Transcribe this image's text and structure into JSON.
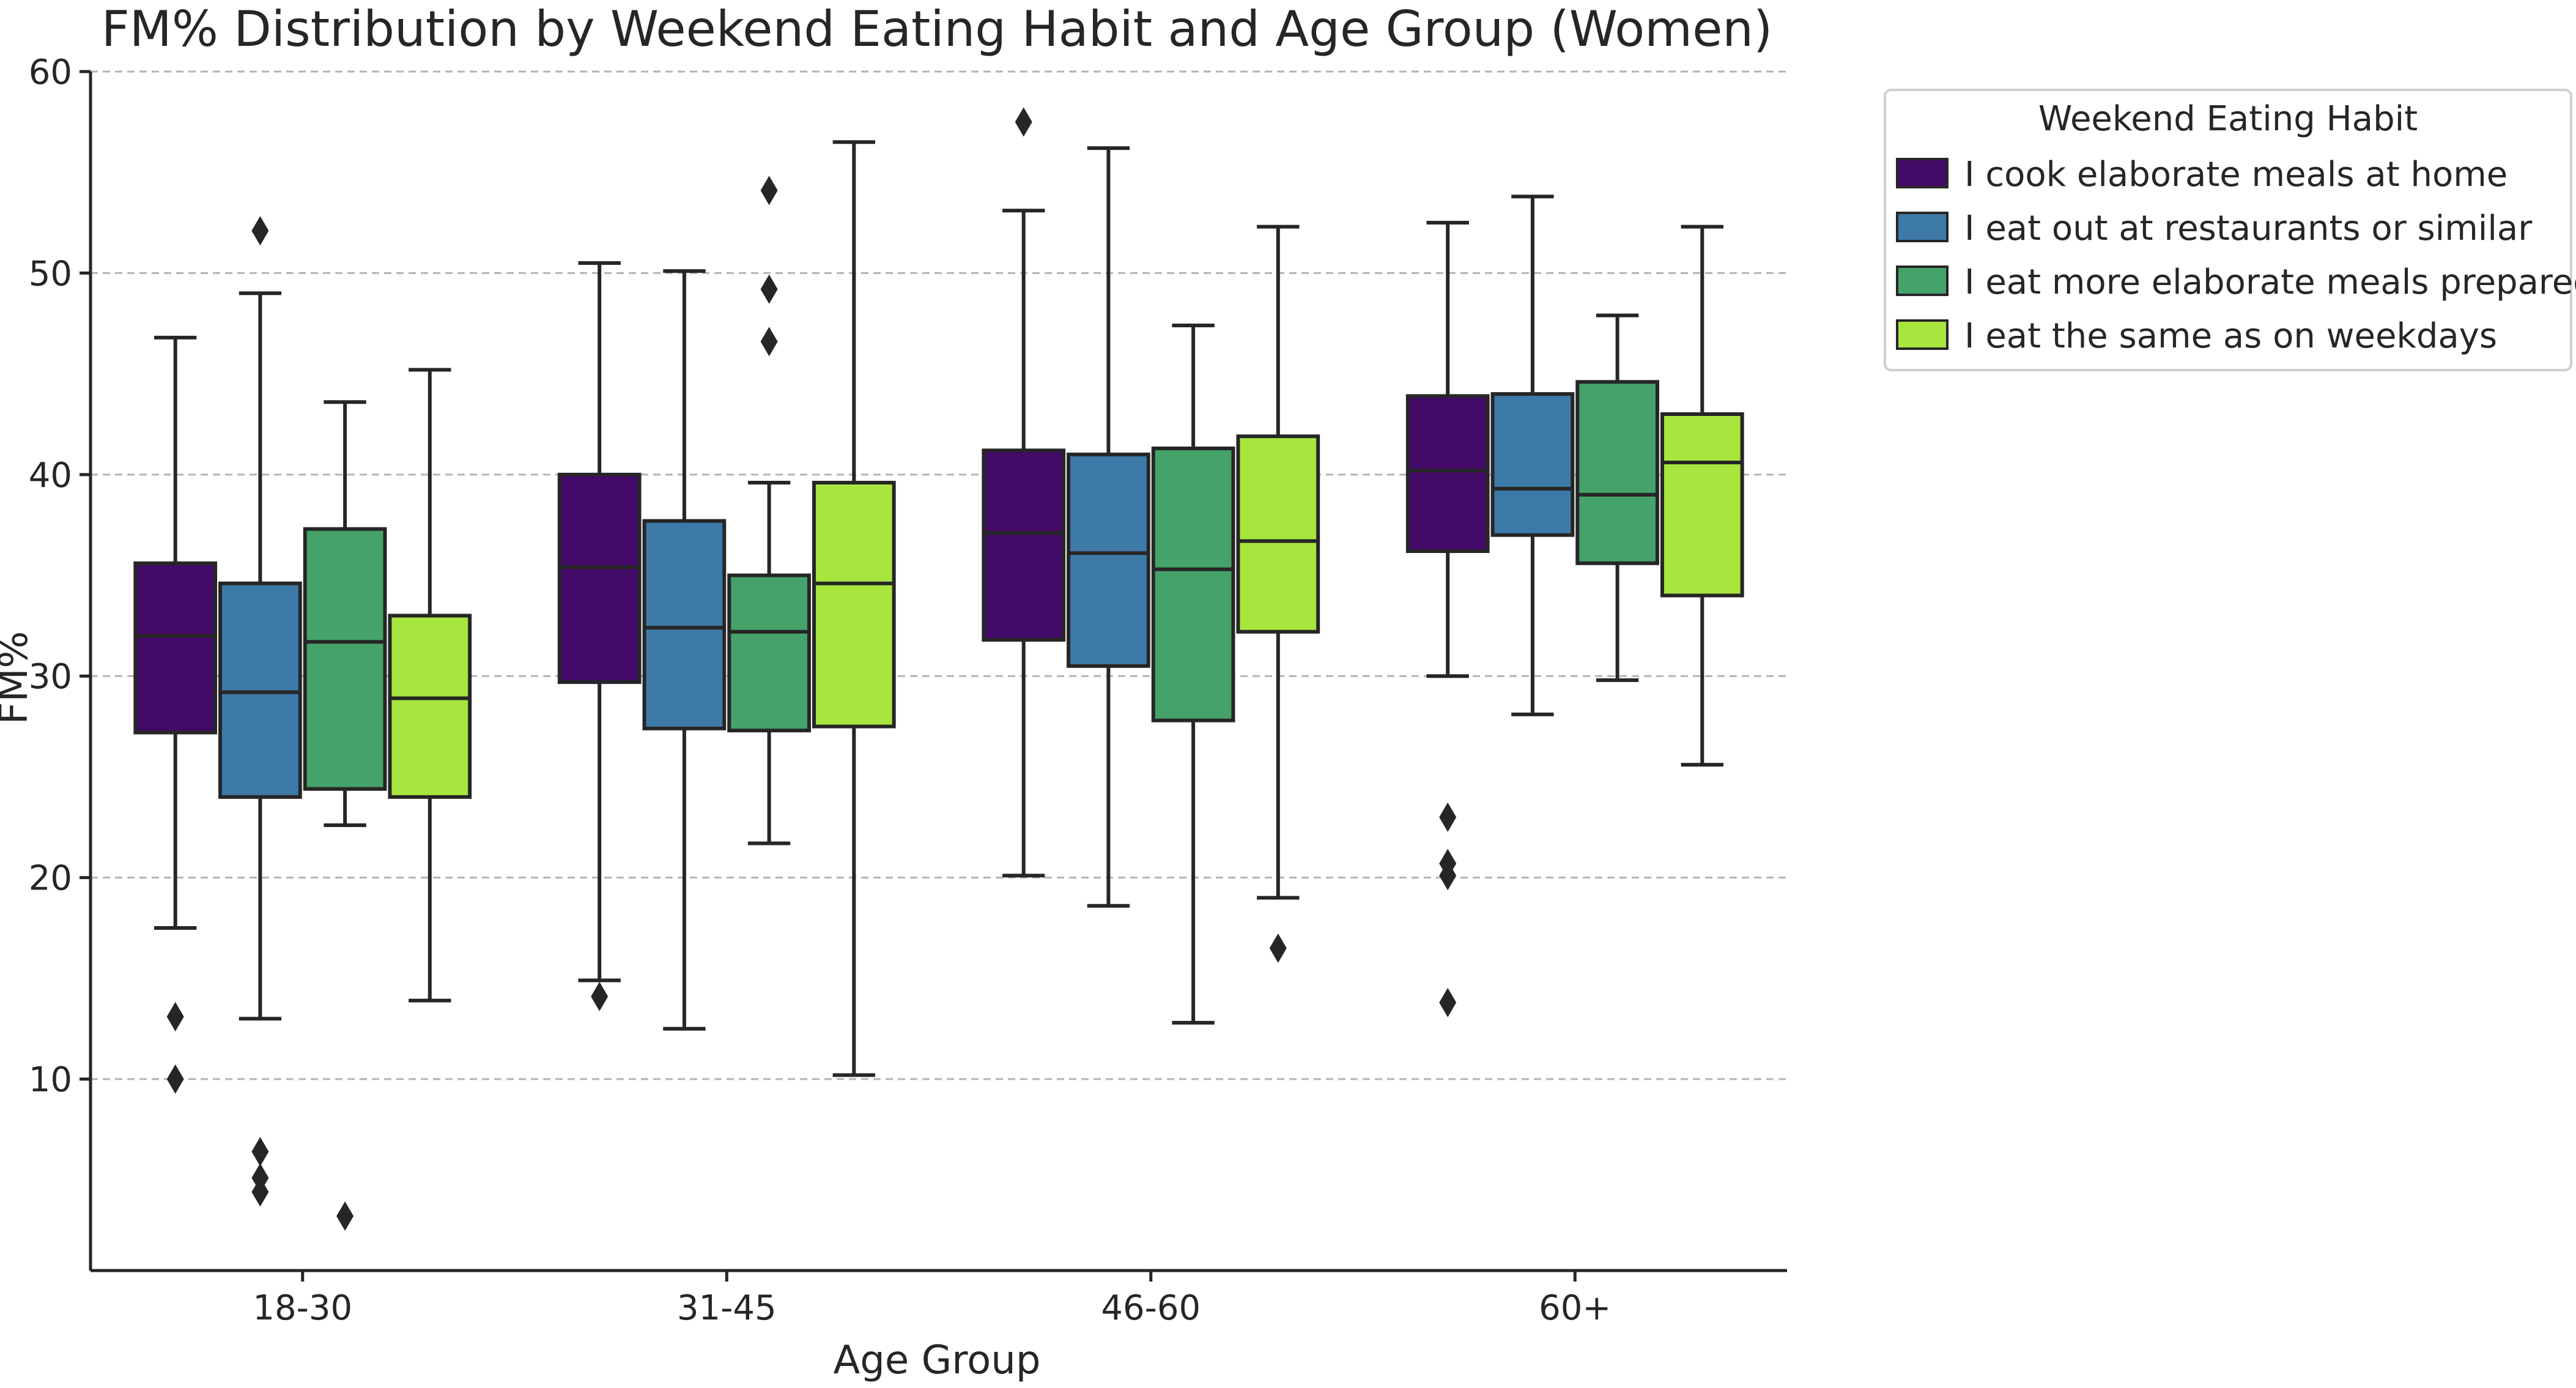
{
  "chart_data": {
    "type": "box",
    "title": "FM% Distribution by Weekend Eating Habit and Age Group (Women)",
    "xlabel": "Age Group",
    "ylabel": "FM%",
    "ylim": [
      0.5,
      60
    ],
    "yticks": [
      10,
      20,
      30,
      40,
      50,
      60
    ],
    "grid": "horizontal dashed",
    "categories": [
      "18-30",
      "31-45",
      "46-60",
      "60+"
    ],
    "legend": {
      "title": "Weekend Eating Habit",
      "placement": "outside-top-right"
    },
    "series": [
      {
        "name": "I cook elaborate meals at home",
        "color": "#440a68",
        "boxes": [
          {
            "whislo": 17.5,
            "q1": 27.2,
            "med": 32.0,
            "q3": 35.6,
            "whishi": 46.8,
            "fliers": [
              13.1,
              10.0
            ]
          },
          {
            "whislo": 14.9,
            "q1": 29.7,
            "med": 35.4,
            "q3": 40.0,
            "whishi": 50.5,
            "fliers": [
              14.1
            ]
          },
          {
            "whislo": 20.1,
            "q1": 31.8,
            "med": 37.1,
            "q3": 41.2,
            "whishi": 53.1,
            "fliers": [
              57.5
            ]
          },
          {
            "whislo": 30.0,
            "q1": 36.2,
            "med": 40.2,
            "q3": 43.9,
            "whishi": 52.5,
            "fliers": [
              23.0,
              20.7,
              20.1,
              13.8
            ]
          }
        ]
      },
      {
        "name": "I eat out at restaurants or similar",
        "color": "#3e7aa8",
        "boxes": [
          {
            "whislo": 13.0,
            "q1": 24.0,
            "med": 29.2,
            "q3": 34.6,
            "whishi": 49.0,
            "fliers": [
              52.1,
              6.4,
              5.1,
              4.4
            ]
          },
          {
            "whislo": 12.5,
            "q1": 27.4,
            "med": 32.4,
            "q3": 37.7,
            "whishi": 50.1,
            "fliers": []
          },
          {
            "whislo": 18.6,
            "q1": 30.5,
            "med": 36.1,
            "q3": 41.0,
            "whishi": 56.2,
            "fliers": []
          },
          {
            "whislo": 28.1,
            "q1": 37.0,
            "med": 39.3,
            "q3": 44.0,
            "whishi": 53.8,
            "fliers": []
          }
        ]
      },
      {
        "name": "I eat more elaborate meals prepared by others",
        "color": "#45a26a",
        "boxes": [
          {
            "whislo": 22.6,
            "q1": 24.4,
            "med": 31.7,
            "q3": 37.3,
            "whishi": 43.6,
            "fliers": [
              3.2
            ]
          },
          {
            "whislo": 21.7,
            "q1": 27.3,
            "med": 32.2,
            "q3": 35.0,
            "whishi": 39.6,
            "fliers": [
              54.1,
              49.2,
              46.6
            ]
          },
          {
            "whislo": 12.8,
            "q1": 27.8,
            "med": 35.3,
            "q3": 41.3,
            "whishi": 47.4,
            "fliers": []
          },
          {
            "whislo": 29.8,
            "q1": 35.6,
            "med": 39.0,
            "q3": 44.6,
            "whishi": 47.9,
            "fliers": []
          }
        ]
      },
      {
        "name": "I eat the same as on weekdays",
        "color": "#a8e63f",
        "boxes": [
          {
            "whislo": 13.9,
            "q1": 24.0,
            "med": 28.9,
            "q3": 33.0,
            "whishi": 45.2,
            "fliers": []
          },
          {
            "whislo": 10.2,
            "q1": 27.5,
            "med": 34.6,
            "q3": 39.6,
            "whishi": 56.5,
            "fliers": []
          },
          {
            "whislo": 19.0,
            "q1": 32.2,
            "med": 36.7,
            "q3": 41.9,
            "whishi": 52.3,
            "fliers": [
              16.5
            ]
          },
          {
            "whislo": 25.6,
            "q1": 34.0,
            "med": 40.6,
            "q3": 43.0,
            "whishi": 52.3,
            "fliers": []
          }
        ]
      }
    ]
  }
}
